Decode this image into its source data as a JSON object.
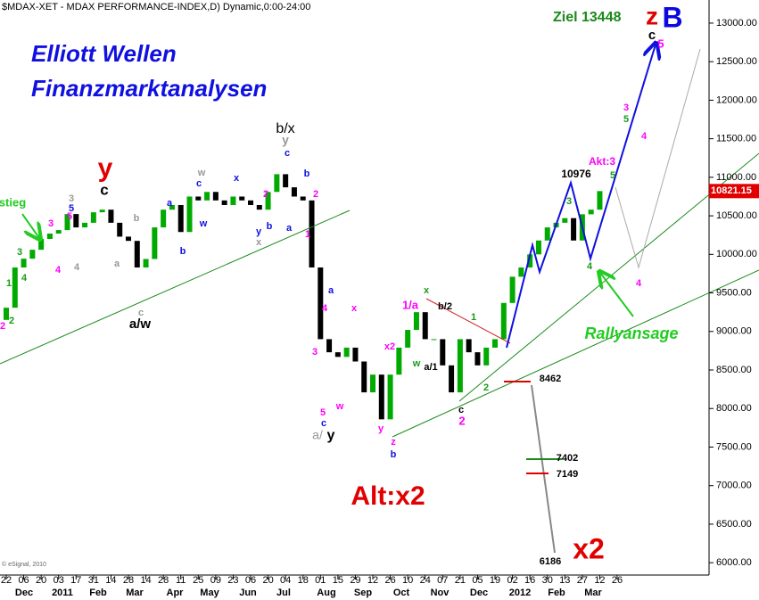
{
  "chart_data": {
    "type": "candlestick",
    "title": "$MDAX-XET - MDAX PERFORMANCE-INDEX,D) Dynamic,0:00-24:00",
    "up_color": "#00aa00",
    "down_color": "#000000",
    "ylim": [
      5840,
      13300
    ],
    "yticks": [
      {
        "value": 6000,
        "label": "6000.00"
      },
      {
        "value": 6500,
        "label": "6500.00"
      },
      {
        "value": 7000,
        "label": "7000.00"
      },
      {
        "value": 7500,
        "label": "7500.00"
      },
      {
        "value": 8000,
        "label": "8000.00"
      },
      {
        "value": 8500,
        "label": "8500.00"
      },
      {
        "value": 9000,
        "label": "9000.00"
      },
      {
        "value": 9500,
        "label": "9500.00"
      },
      {
        "value": 10000,
        "label": "10000.00"
      },
      {
        "value": 10500,
        "label": "10500.00"
      },
      {
        "value": 11000,
        "label": "11000.00"
      },
      {
        "value": 11500,
        "label": "11500.00"
      },
      {
        "value": 12000,
        "label": "12000.00"
      },
      {
        "value": 12500,
        "label": "12500.00"
      },
      {
        "value": 13000,
        "label": "13000.00"
      }
    ],
    "last_price": {
      "value": 10821.15,
      "label": "10821.15",
      "color": "#e00000"
    },
    "xtick_labels": [
      "22",
      "06",
      "20",
      "03",
      "17",
      "31",
      "14",
      "28",
      "14",
      "28",
      "11",
      "25",
      "09",
      "23",
      "06",
      "20",
      "04",
      "18",
      "01",
      "15",
      "29",
      "12",
      "26",
      "10",
      "24",
      "07",
      "21",
      "05",
      "19",
      "02",
      "16",
      "30",
      "13",
      "27",
      "12",
      "26"
    ],
    "months": [
      "Dec",
      "2011",
      "Feb",
      "Mar",
      "Apr",
      "May",
      "Jun",
      "Jul",
      "Aug",
      "Sep",
      "Oct",
      "Nov",
      "Dec",
      "2012",
      "Feb",
      "Mar"
    ],
    "open": [
      9150,
      9308,
      9830,
      9944,
      10060,
      10200,
      10270,
      10315,
      10523,
      10350,
      10410,
      10546,
      10580,
      10410,
      10230,
      10175,
      9830,
      9940,
      10350,
      10580,
      10640,
      10290,
      10750,
      10700,
      10810,
      10700,
      10640,
      10750,
      10700,
      10640,
      10580,
      10810,
      11040,
      10870,
      10750,
      10700,
      9830,
      8900,
      8730,
      8670,
      8790,
      8610,
      8210,
      8440,
      7860,
      8440,
      8790,
      9020,
      9250,
      8900,
      8900,
      8560,
      8210,
      8900,
      8730,
      8560,
      8790,
      8900,
      9370,
      9710,
      9830,
      10000,
      10180,
      10350,
      10410,
      10470,
      10180,
      10520,
      10580
    ],
    "close": [
      9308,
      9830,
      9944,
      10060,
      10200,
      10270,
      10315,
      10523,
      10350,
      10410,
      10546,
      10580,
      10410,
      10230,
      10175,
      9830,
      9940,
      10350,
      10580,
      10640,
      10290,
      10750,
      10700,
      10810,
      10700,
      10640,
      10750,
      10700,
      10640,
      10580,
      10810,
      11040,
      10870,
      10750,
      10700,
      9830,
      8900,
      8730,
      8670,
      8790,
      8610,
      8210,
      8440,
      7860,
      8440,
      8790,
      9020,
      9250,
      8900,
      8900,
      8560,
      8210,
      8900,
      8730,
      8560,
      8790,
      8900,
      9370,
      9710,
      9830,
      10000,
      10180,
      10350,
      10410,
      10470,
      10180,
      10520,
      10580,
      10821
    ],
    "annotations": [
      {
        "text": "Elliott Wellen",
        "color": "#1010e0"
      },
      {
        "text": "Finanzmarktanalysen",
        "color": "#1010e0"
      },
      {
        "text": "Ziel 13448",
        "color": "#1a8a1a"
      },
      {
        "text": "z",
        "color": "#e00000"
      },
      {
        "text": "B",
        "color": "#0a0ae0"
      },
      {
        "text": "c",
        "color": "#000000"
      },
      {
        "text": "5",
        "color": "#ff00ff"
      },
      {
        "text": "y",
        "color": "#e00000"
      },
      {
        "text": "c",
        "color": "#000000"
      },
      {
        "text": "b/x",
        "color": "#000000"
      },
      {
        "text": "y",
        "color": "#999999"
      },
      {
        "text": "c",
        "color": "#1010e0"
      },
      {
        "text": "stieg",
        "color": "#22cc22"
      },
      {
        "text": "3",
        "color": "#1a9a1a"
      },
      {
        "text": "1",
        "color": "#1a9a1a"
      },
      {
        "text": "2",
        "color": "#1a9a1a"
      },
      {
        "text": "2",
        "color": "#ff00ff"
      },
      {
        "text": "4",
        "color": "#1a9a1a"
      },
      {
        "text": "4",
        "color": "#ff00ff"
      },
      {
        "text": "3",
        "color": "#ff00ff"
      },
      {
        "text": "5",
        "color": "#ff00ff"
      },
      {
        "text": "3",
        "color": "#999999"
      },
      {
        "text": "5",
        "color": "#1010e0"
      },
      {
        "text": "a",
        "color": "#999999"
      },
      {
        "text": "b",
        "color": "#999999"
      },
      {
        "text": "4",
        "color": "#999999"
      },
      {
        "text": "c",
        "color": "#999999"
      },
      {
        "text": "a/w",
        "color": "#000000"
      },
      {
        "text": "w",
        "color": "#999999"
      },
      {
        "text": "c",
        "color": "#1010e0"
      },
      {
        "text": "a",
        "color": "#1010e0"
      },
      {
        "text": "w",
        "color": "#1010e0"
      },
      {
        "text": "b",
        "color": "#1010e0"
      },
      {
        "text": "x",
        "color": "#1010e0"
      },
      {
        "text": "2",
        "color": "#ff00ff"
      },
      {
        "text": "y",
        "color": "#1010e0"
      },
      {
        "text": "x",
        "color": "#999999"
      },
      {
        "text": "b",
        "color": "#1010e0"
      },
      {
        "text": "a",
        "color": "#1010e0"
      },
      {
        "text": "b",
        "color": "#1010e0"
      },
      {
        "text": "2",
        "color": "#ff00ff"
      },
      {
        "text": "1",
        "color": "#ff00ff"
      },
      {
        "text": "a",
        "color": "#1010e0"
      },
      {
        "text": "4",
        "color": "#ff00ff"
      },
      {
        "text": "3",
        "color": "#ff00ff"
      },
      {
        "text": "x",
        "color": "#ff00ff"
      },
      {
        "text": "5",
        "color": "#ff00ff"
      },
      {
        "text": "c",
        "color": "#1010e0"
      },
      {
        "text": "w",
        "color": "#ff00ff"
      },
      {
        "text": "a/",
        "color": "#999999"
      },
      {
        "text": "y",
        "color": "#000000"
      },
      {
        "text": "x2",
        "color": "#ff00ff"
      },
      {
        "text": "y",
        "color": "#ff00ff"
      },
      {
        "text": "z",
        "color": "#ff00ff"
      },
      {
        "text": "b",
        "color": "#1010e0"
      },
      {
        "text": "1/a",
        "color": "#ff00ff"
      },
      {
        "text": "x",
        "color": "#1a9a1a"
      },
      {
        "text": "b/2",
        "color": "#000000"
      },
      {
        "text": "w",
        "color": "#1a9a1a"
      },
      {
        "text": "a/1",
        "color": "#000000"
      },
      {
        "text": "1",
        "color": "#1a9a1a"
      },
      {
        "text": "c",
        "color": "#000000"
      },
      {
        "text": "2",
        "color": "#ff00ff"
      },
      {
        "text": "2",
        "color": "#1a9a1a"
      },
      {
        "text": "3",
        "color": "#1a9a1a"
      },
      {
        "text": "10976",
        "color": "#000000"
      },
      {
        "text": "Akt:3",
        "color": "#ff00ff"
      },
      {
        "text": "5",
        "color": "#1a9a1a"
      },
      {
        "text": "4",
        "color": "#1a9a1a"
      },
      {
        "text": "3",
        "color": "#ff00ff"
      },
      {
        "text": "5",
        "color": "#1a9a1a"
      },
      {
        "text": "4",
        "color": "#ff00ff"
      },
      {
        "text": "4",
        "color": "#ff00ff"
      },
      {
        "text": "Rallyansage",
        "color": "#22cc22"
      },
      {
        "text": "8462",
        "color": "#000000"
      },
      {
        "text": "7402",
        "color": "#000000"
      },
      {
        "text": "7149",
        "color": "#000000"
      },
      {
        "text": "6186",
        "color": "#000000"
      },
      {
        "text": "x2",
        "color": "#e00000"
      },
      {
        "text": "Alt:x2",
        "color": "#e00000"
      },
      {
        "text": "© eSignal, 2010",
        "color": "#666666"
      }
    ]
  }
}
